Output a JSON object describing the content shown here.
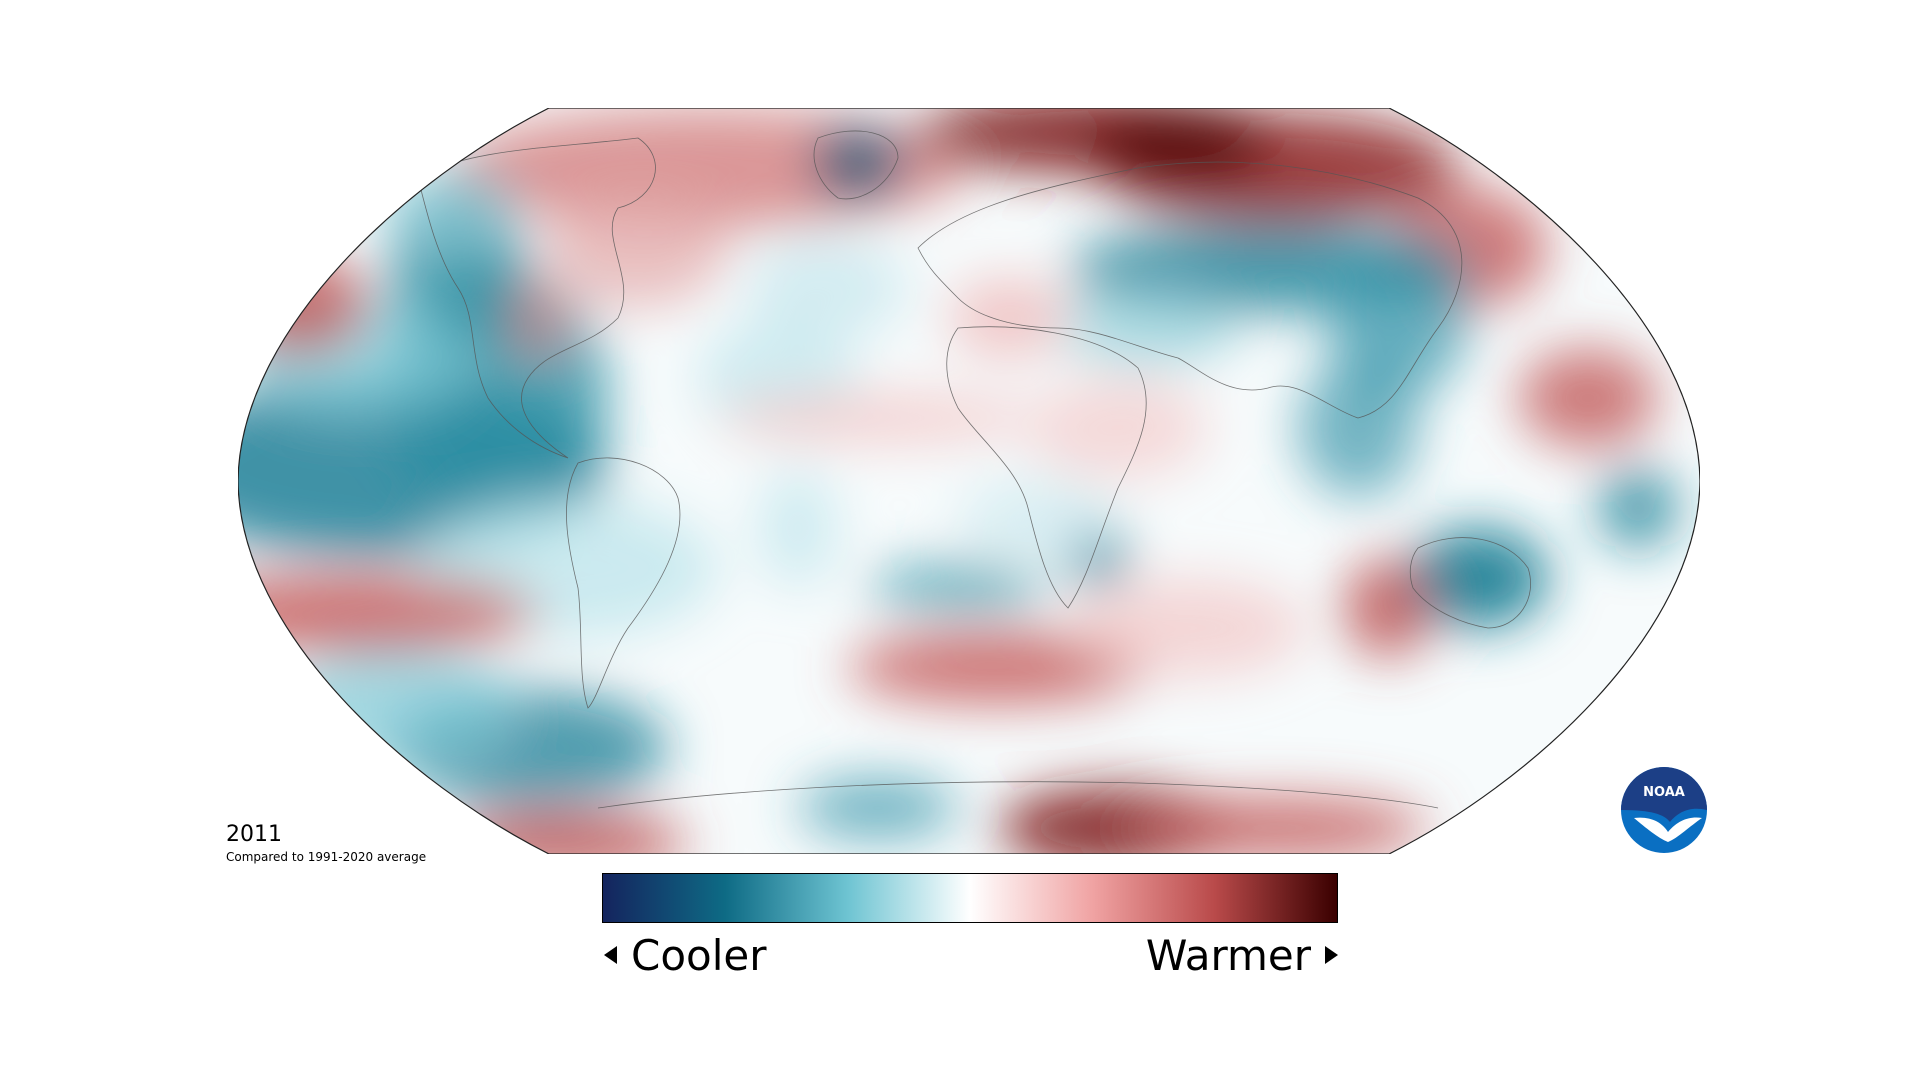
{
  "map": {
    "projection": "robinson",
    "baseline_year": "2011",
    "baseline_note": "Compared to 1991-2020 average"
  },
  "legend": {
    "cooler_label": "Cooler",
    "warmer_label": "Warmer",
    "gradient_colors": [
      "#14245e",
      "#0e6b85",
      "#6ec4d2",
      "#ffffff",
      "#f0a3a3",
      "#b94a4a",
      "#3a0000"
    ]
  },
  "logo": {
    "text": "NOAA"
  },
  "colors": {
    "cool_strong": "#0f6c84",
    "cool_light": "#bfe6ec",
    "warm_light": "#f2c6c6",
    "warm_strong": "#8c1f1f",
    "warm_dark": "#4a0707",
    "noaa_blue": "#0a6fc2",
    "noaa_navy": "#1c3f86"
  }
}
